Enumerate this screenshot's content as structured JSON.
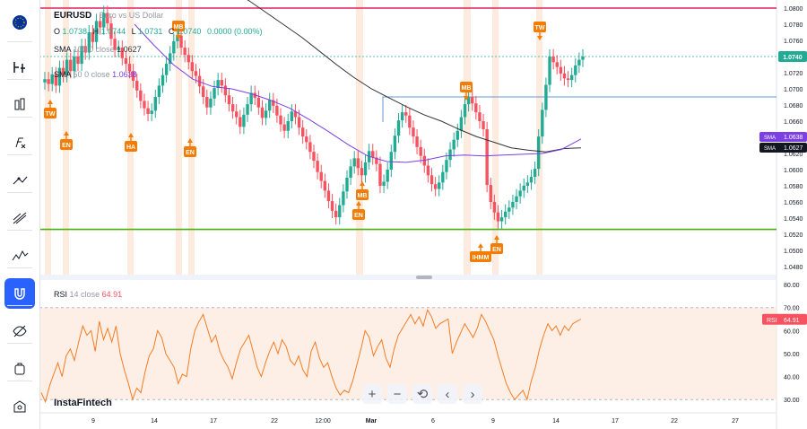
{
  "symbol": {
    "ticker": "EURUSD",
    "name": "Euro vs US Dollar",
    "ohlc": {
      "o_label": "O",
      "o": "1.0738",
      "h_label": "H",
      "h": "1.0744",
      "l_label": "L",
      "l": "1.0731",
      "c_label": "C",
      "c": "1.0740",
      "change": "0.0000 (0.00%)"
    }
  },
  "indicators": {
    "sma100": {
      "name": "SMA",
      "length": "100",
      "offset": "0",
      "source": "close",
      "value": "1.0627"
    },
    "sma50": {
      "name": "SMA",
      "length": "50",
      "offset": "0",
      "source": "close",
      "value": "1.0638"
    },
    "rsi": {
      "name": "RSI",
      "length": "14",
      "source": "close",
      "value": "64.91"
    }
  },
  "brand": "InstaFintech",
  "colors": {
    "bull": "#22ab94",
    "bear": "#f7525f",
    "sma100": "#333333",
    "sma50": "#7b3fe4",
    "resistance": "#e0245e",
    "support": "#4caf0f",
    "rsi_line": "#f57c22",
    "marker": "#f57c00",
    "price_label": "#22ab94"
  },
  "sidebar": {
    "icons": [
      "eu-flag-icon",
      "timeframe-icon",
      "candles-icon",
      "indicators-icon",
      "drawing-tools-icon",
      "fib-tools-icon",
      "patterns-icon",
      "magnet-icon",
      "hide-drawings-icon",
      "alerts-icon",
      "screenshot-icon"
    ]
  },
  "controls": {
    "icons": [
      "zoom-in-icon",
      "zoom-out-icon",
      "reset-icon",
      "scroll-left-icon",
      "scroll-right-icon"
    ],
    "glyphs": [
      "+",
      "−",
      "⟲",
      "‹",
      "›"
    ]
  },
  "chart_data": {
    "type": "candlestick",
    "price_axis": {
      "min": 1.047,
      "max": 1.081,
      "ticks": [
        "1.0800",
        "1.0780",
        "1.0760",
        "1.0740",
        "1.0720",
        "1.0700",
        "1.0680",
        "1.0660",
        "1.0640",
        "1.0620",
        "1.0600",
        "1.0580",
        "1.0560",
        "1.0540",
        "1.0520",
        "1.0500",
        "1.0480"
      ]
    },
    "time_axis": {
      "labels": [
        "9",
        "14",
        "17",
        "22",
        "12:00",
        "Mar",
        "6",
        "9",
        "14",
        "17",
        "22",
        "27"
      ]
    },
    "current_price": {
      "value": 1.074,
      "label": "1.0740"
    },
    "price_labels": [
      {
        "name": "SMA",
        "value": "1.0638"
      },
      {
        "name": "SMA",
        "value": "1.0627"
      }
    ],
    "levels": [
      {
        "name": "resistance",
        "value": 1.08
      },
      {
        "name": "support",
        "value": 1.0526
      },
      {
        "name": "box-top",
        "value": 1.069
      }
    ],
    "closes": [
      1.0712,
      1.0706,
      1.0718,
      1.0704,
      1.0726,
      1.0717,
      1.0736,
      1.0722,
      1.074,
      1.0731,
      1.0753,
      1.0745,
      1.077,
      1.0758,
      1.0784,
      1.0776,
      1.0794,
      1.0781,
      1.0762,
      1.0748,
      1.0751,
      1.0738,
      1.0731,
      1.0722,
      1.071,
      1.0698,
      1.0685,
      1.0676,
      1.0669,
      1.0673,
      1.069,
      1.0704,
      1.0717,
      1.0731,
      1.0744,
      1.0759,
      1.0766,
      1.0751,
      1.0742,
      1.0733,
      1.0722,
      1.0716,
      1.0703,
      1.069,
      1.0677,
      1.0688,
      1.0701,
      1.0711,
      1.0704,
      1.0692,
      1.0681,
      1.0672,
      1.0665,
      1.0653,
      1.0668,
      1.0681,
      1.0695,
      1.0689,
      1.0677,
      1.0664,
      1.0673,
      1.0686,
      1.0679,
      1.0667,
      1.0656,
      1.0648,
      1.066,
      1.0672,
      1.0665,
      1.0652,
      1.0641,
      1.0634,
      1.0622,
      1.0611,
      1.0597,
      1.0586,
      1.0574,
      1.0561,
      1.0549,
      1.0541,
      1.0556,
      1.0573,
      1.059,
      1.0604,
      1.0614,
      1.0602,
      1.0593,
      1.0609,
      1.0623,
      1.0615,
      1.0607,
      1.058,
      1.0585,
      1.06,
      1.0622,
      1.0642,
      1.0661,
      1.0671,
      1.0667,
      1.0652,
      1.0641,
      1.0628,
      1.0617,
      1.0605,
      1.0593,
      1.0582,
      1.0576,
      1.0584,
      1.0597,
      1.0612,
      1.0625,
      1.0637,
      1.0648,
      1.0665,
      1.0681,
      1.069,
      1.0682,
      1.0671,
      1.066,
      1.065,
      1.0581,
      1.056,
      1.0547,
      1.0536,
      1.0541,
      1.0548,
      1.0553,
      1.056,
      1.0567,
      1.0574,
      1.058,
      1.0584,
      1.0591,
      1.0601,
      1.0641,
      1.0674,
      1.0705,
      1.074,
      1.0733,
      1.0727,
      1.0719,
      1.0713,
      1.0711,
      1.0717,
      1.0729,
      1.0736,
      1.074
    ],
    "sma100": [
      1.085,
      1.0843,
      1.0834,
      1.0822,
      1.0809,
      1.0794,
      1.0779,
      1.0764,
      1.0747,
      1.073,
      1.0714,
      1.07,
      1.0689,
      1.0678,
      1.0668,
      1.066,
      1.065,
      1.0641,
      1.0634,
      1.0627,
      1.0624,
      1.0622,
      1.0626,
      1.0627
    ],
    "sma50": [
      1.078,
      1.0754,
      1.073,
      1.0712,
      1.0703,
      1.07,
      1.0694,
      1.0686,
      1.0676,
      1.0662,
      1.0647,
      1.0631,
      1.0617,
      1.061,
      1.0609,
      1.0612,
      1.0617,
      1.0618,
      1.0617,
      1.0618,
      1.0619,
      1.062,
      1.0625,
      1.0638
    ],
    "rsi": {
      "ticks": [
        "80.00",
        "70.00",
        "60.00",
        "50.00",
        "40.00",
        "30.00"
      ],
      "min": 25,
      "max": 82,
      "overbought": 70,
      "oversold": 30,
      "last": 64.91,
      "values": [
        33,
        29,
        36,
        41,
        46,
        40,
        49,
        52,
        47,
        55,
        62,
        58,
        60,
        51,
        64,
        56,
        61,
        55,
        62,
        50,
        43,
        37,
        30,
        35,
        33,
        42,
        49,
        52,
        60,
        57,
        50,
        47,
        44,
        37,
        41,
        40,
        52,
        60,
        64,
        67,
        61,
        55,
        58,
        51,
        47,
        44,
        39,
        46,
        52,
        55,
        58,
        51,
        44,
        40,
        46,
        51,
        55,
        50,
        56,
        53,
        47,
        45,
        49,
        43,
        40,
        51,
        55,
        48,
        44,
        46,
        40,
        35,
        32,
        34,
        33,
        38,
        45,
        52,
        60,
        57,
        49,
        53,
        56,
        48,
        44,
        52,
        58,
        61,
        64,
        67,
        63,
        66,
        62,
        69,
        66,
        61,
        63,
        64,
        65
      ],
      "tail": [
        50,
        55,
        59,
        63,
        60,
        57,
        61,
        67,
        64,
        60,
        56,
        49,
        43,
        37,
        33,
        30,
        32,
        34,
        30,
        38,
        44,
        52,
        58,
        63,
        60,
        62,
        58,
        62,
        60,
        63,
        64,
        65
      ]
    },
    "markers": [
      {
        "label": "TW",
        "dir": "up"
      },
      {
        "label": "EN",
        "dir": "up"
      },
      {
        "label": "MB",
        "dir": "down"
      },
      {
        "label": "HA",
        "dir": "up"
      },
      {
        "label": "EN",
        "dir": "up"
      },
      {
        "label": "MB",
        "dir": "up"
      },
      {
        "label": "EN",
        "dir": "up"
      },
      {
        "label": "MB",
        "dir": "down"
      },
      {
        "label": "IHMM",
        "dir": "up"
      },
      {
        "label": "EN",
        "dir": "up"
      },
      {
        "label": "TW",
        "dir": "down"
      }
    ]
  }
}
